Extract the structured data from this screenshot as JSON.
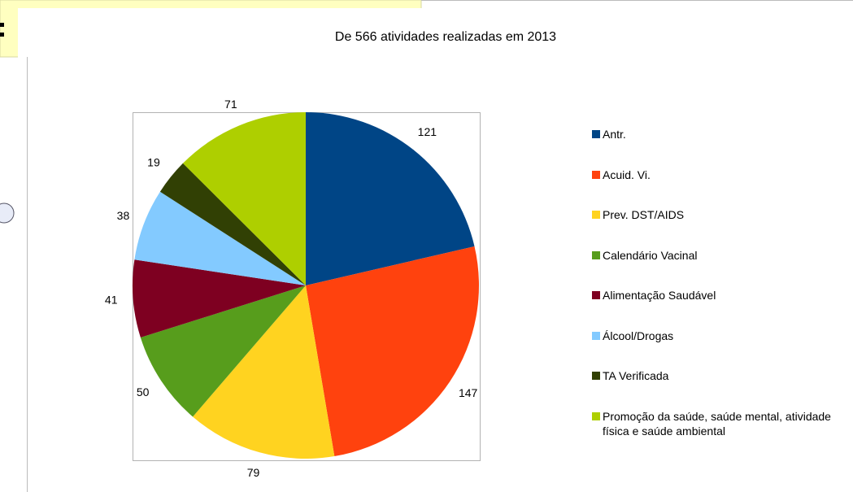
{
  "chart_data": {
    "type": "pie",
    "title": "De 566 atividades realizadas em 2013",
    "categories": [
      "Antr.",
      "Acuid. Vi.",
      "Prev. DST/AIDS",
      "Calendário Vacinal",
      "Alimentação Saudável",
      "Álcool/Drogas",
      "TA Verificada",
      "Promoção da saúde, saúde mental, atividade física e saúde ambiental"
    ],
    "values": [
      121,
      147,
      79,
      50,
      41,
      38,
      19,
      71
    ],
    "colors": [
      "#004586",
      "#ff420e",
      "#ffd320",
      "#579d1c",
      "#7e0021",
      "#83caff",
      "#314004",
      "#aecf00"
    ],
    "legend": "right"
  }
}
